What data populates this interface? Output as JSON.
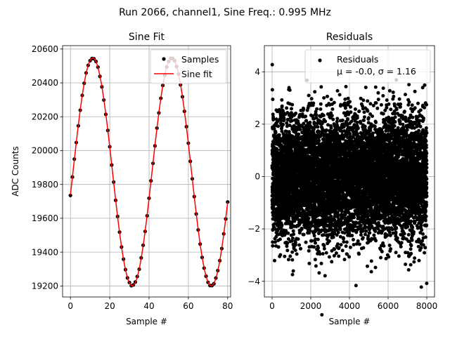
{
  "figure": {
    "suptitle": "Run 2066, channel1, Sine Freq.: 0.995 MHz"
  },
  "chart_data": [
    {
      "type": "line",
      "title": "Sine Fit",
      "xlabel": "Sample #",
      "ylabel": "ADC Counts",
      "xlim": [
        -4,
        81.5
      ],
      "ylim": [
        19135,
        20620
      ],
      "xticks": [
        0,
        20,
        40,
        60,
        80
      ],
      "yticks": [
        19200,
        19400,
        19600,
        19800,
        20000,
        20200,
        20400,
        20600
      ],
      "grid": true,
      "legend_position": "top-right",
      "sine_params": {
        "offset": 19874,
        "amplitude": 673,
        "period": 40.2,
        "phase": -0.204
      },
      "series": [
        {
          "name": "Samples",
          "kind": "scatter",
          "color": "#000000",
          "x_range": [
            0,
            80
          ]
        },
        {
          "name": "Sine fit",
          "kind": "line",
          "color": "#ff0000",
          "x_range": [
            0,
            80
          ]
        }
      ]
    },
    {
      "type": "scatter",
      "title": "Residuals",
      "xlabel": "Sample #",
      "ylabel": "",
      "xlim": [
        -400,
        8400
      ],
      "ylim": [
        -4.6,
        5.0
      ],
      "xticks": [
        0,
        2000,
        4000,
        6000,
        8000
      ],
      "yticks": [
        -4,
        -2,
        0,
        2,
        4
      ],
      "grid": true,
      "legend_position": "top-right",
      "sample_count": 8000,
      "series": [
        {
          "name": "Residuals",
          "color": "#000000",
          "mean": -0.0,
          "sigma": 1.16
        }
      ],
      "legend_stats": "μ = -0.0, σ = 1.16"
    }
  ]
}
